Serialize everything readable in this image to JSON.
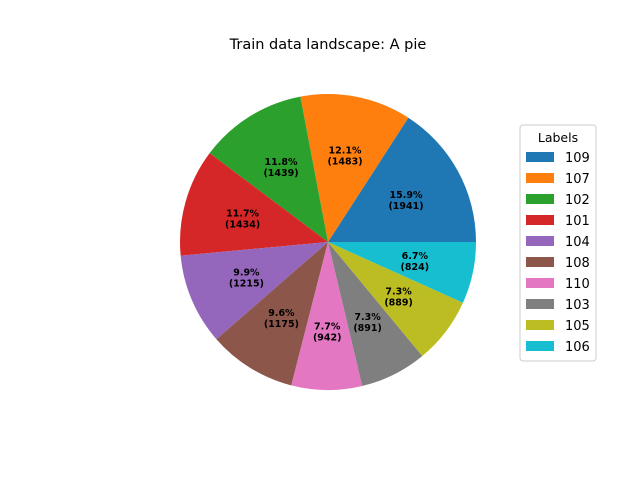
{
  "chart_data": {
    "type": "pie",
    "title": "Train data landscape: A pie",
    "start_angle_deg": 0,
    "direction": "counterclockwise",
    "slices": [
      {
        "label": "109",
        "value": 1941,
        "pct": "15.9%",
        "color": "#1f77b4"
      },
      {
        "label": "107",
        "value": 1483,
        "pct": "12.1%",
        "color": "#ff7f0e"
      },
      {
        "label": "102",
        "value": 1439,
        "pct": "11.8%",
        "color": "#2ca02c"
      },
      {
        "label": "101",
        "value": 1434,
        "pct": "11.7%",
        "color": "#d62728"
      },
      {
        "label": "104",
        "value": 1215,
        "pct": "9.9%",
        "color": "#9467bd"
      },
      {
        "label": "108",
        "value": 1175,
        "pct": "9.6%",
        "color": "#8c564b"
      },
      {
        "label": "110",
        "value": 942,
        "pct": "7.7%",
        "color": "#e377c2"
      },
      {
        "label": "103",
        "value": 891,
        "pct": "7.3%",
        "color": "#7f7f7f"
      },
      {
        "label": "105",
        "value": 889,
        "pct": "7.3%",
        "color": "#bcbd22"
      },
      {
        "label": "106",
        "value": 824,
        "pct": "6.7%",
        "color": "#17becf"
      }
    ],
    "legend": {
      "title": "Labels",
      "placement": "right"
    }
  }
}
